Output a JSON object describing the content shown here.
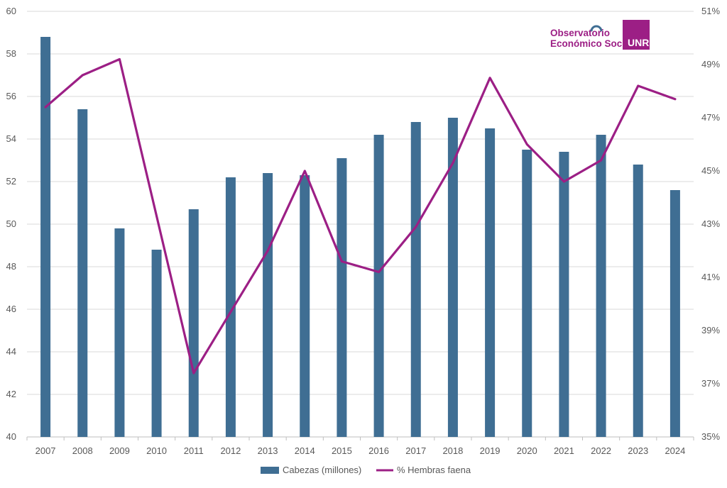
{
  "chart_data": {
    "type": "bar",
    "categories": [
      "2007",
      "2008",
      "2009",
      "2010",
      "2011",
      "2012",
      "2013",
      "2014",
      "2015",
      "2016",
      "2017",
      "2018",
      "2019",
      "2020",
      "2021",
      "2022",
      "2023",
      "2024"
    ],
    "series": [
      {
        "name": "Cabezas (millones)",
        "type": "bar",
        "axis": "left",
        "color": "#3f6e93",
        "values": [
          58.8,
          55.4,
          49.8,
          48.8,
          50.7,
          52.2,
          52.4,
          52.3,
          53.1,
          54.2,
          54.8,
          55.0,
          54.5,
          53.5,
          53.4,
          54.2,
          52.8,
          51.6
        ]
      },
      {
        "name": "% Hembras faena",
        "type": "line",
        "axis": "right",
        "color": "#9c1f85",
        "values": [
          47.4,
          48.6,
          49.2,
          43.3,
          37.4,
          39.7,
          42.0,
          45.0,
          41.6,
          41.2,
          42.9,
          45.3,
          48.5,
          46.0,
          44.6,
          45.4,
          48.2,
          47.7
        ]
      }
    ],
    "ylim_left": [
      40,
      60
    ],
    "yticks_left": [
      "40",
      "42",
      "44",
      "46",
      "48",
      "50",
      "52",
      "54",
      "56",
      "58",
      "60"
    ],
    "ylim_right": [
      35,
      51
    ],
    "yticks_right": [
      "35%",
      "37%",
      "39%",
      "41%",
      "43%",
      "45%",
      "47%",
      "49%",
      "51%"
    ],
    "grid": true,
    "legend_position": "bottom"
  },
  "logo": {
    "line1": "Observatorio",
    "line2": "Económico Social",
    "badge": "UNR",
    "color": "#9c1f85"
  }
}
